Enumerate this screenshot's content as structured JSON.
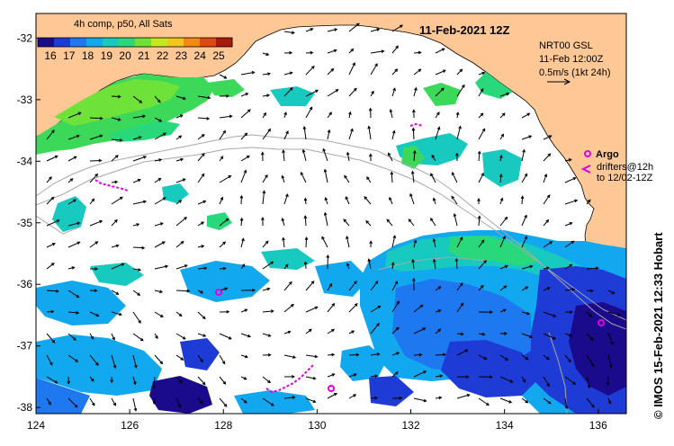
{
  "map": {
    "product_title": "4h comp, p50, All Sats",
    "date_title": "11-Feb-2021 12Z",
    "colorbar_ticks": [
      "16",
      "17",
      "18",
      "19",
      "20",
      "21",
      "22",
      "23",
      "24",
      "25"
    ],
    "colorbar_colors": [
      "#1a0a8c",
      "#1f3bd6",
      "#1e78f0",
      "#12a8f0",
      "#18c9c0",
      "#28d87a",
      "#6fe23a",
      "#c6e81e",
      "#f0c81a",
      "#f08a14",
      "#e04812",
      "#a81a0c"
    ],
    "x_axis_ticks": [
      "124",
      "126",
      "128",
      "130",
      "132",
      "134",
      "136"
    ],
    "y_axis_ticks": [
      "-32",
      "-33",
      "-34",
      "-35",
      "-36",
      "-37",
      "-38"
    ],
    "lon_range": [
      124,
      136.6
    ],
    "lat_range": [
      -31.6,
      -38.1
    ],
    "current_info": {
      "line1": "NRT00 GSL",
      "line2": "11-Feb 12:00Z",
      "line3": "0.5m/s (1kt 24h)"
    },
    "argo_label": "Argo",
    "drifters_line1": "drifters@12h",
    "drifters_line2": "to 12/02-12Z",
    "credit": "© IMOS 15-Feb-2021 12:33 Hobart",
    "colors": {
      "land": "#fdc896",
      "ocean": "#ffffff",
      "argo": "#e000e0",
      "isobath": "#a8a8a8"
    }
  }
}
